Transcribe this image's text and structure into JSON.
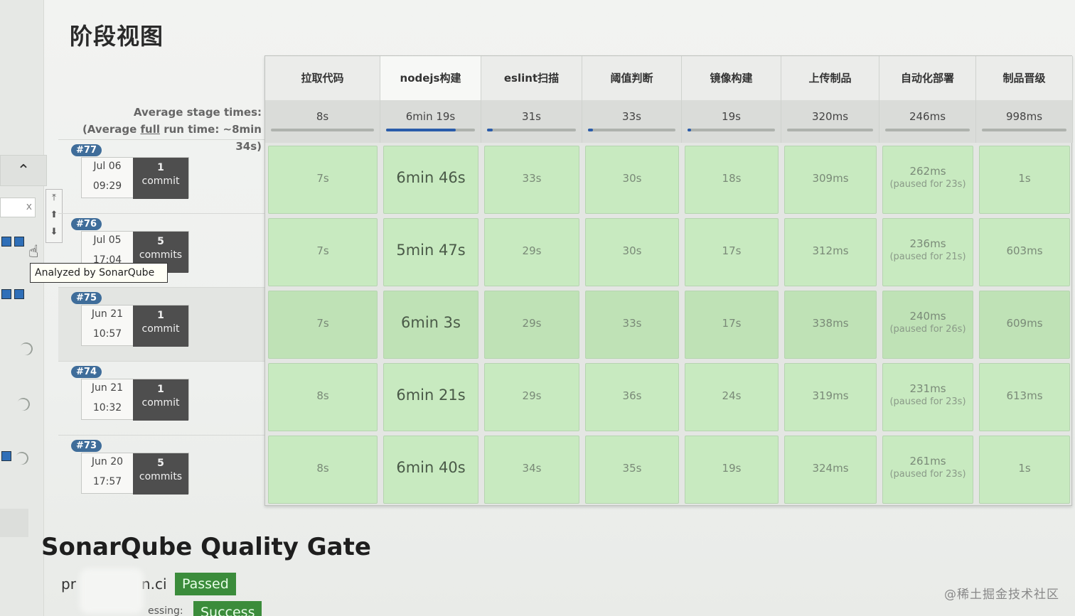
{
  "page_title": "阶段视图",
  "avg": {
    "line1": "Average stage times:",
    "line2_pre": "(Average ",
    "line2_full": "full",
    "line2_post": " run time: ~8min",
    "line3": "34s)"
  },
  "tooltip": "Analyzed by SonarQube",
  "stages": [
    {
      "name": "拉取代码",
      "avg": "8s",
      "fill": 0
    },
    {
      "name": "nodejs构建",
      "avg": "6min 19s",
      "fill": 0.78
    },
    {
      "name": "eslint扫描",
      "avg": "31s",
      "fill": 0.06
    },
    {
      "name": "阈值判断",
      "avg": "33s",
      "fill": 0.06
    },
    {
      "name": "镜像构建",
      "avg": "19s",
      "fill": 0.04
    },
    {
      "name": "上传制品",
      "avg": "320ms",
      "fill": 0
    },
    {
      "name": "自动化部署",
      "avg": "246ms",
      "fill": 0
    },
    {
      "name": "制品晋级",
      "avg": "998ms",
      "fill": 0
    }
  ],
  "builds": [
    {
      "id": "#77",
      "date": "Jul 06",
      "time": "09:29",
      "commit_count": "1",
      "commit_word": "commit",
      "cells": [
        {
          "v": "7s"
        },
        {
          "v": "6min 46s"
        },
        {
          "v": "33s"
        },
        {
          "v": "30s"
        },
        {
          "v": "18s"
        },
        {
          "v": "309ms"
        },
        {
          "v": "262ms",
          "paused": "(paused for 23s)"
        },
        {
          "v": "1s"
        }
      ]
    },
    {
      "id": "#76",
      "date": "Jul 05",
      "time": "17:04",
      "commit_count": "5",
      "commit_word": "commits",
      "cells": [
        {
          "v": "7s"
        },
        {
          "v": "5min 47s"
        },
        {
          "v": "29s"
        },
        {
          "v": "30s"
        },
        {
          "v": "17s"
        },
        {
          "v": "312ms"
        },
        {
          "v": "236ms",
          "paused": "(paused for 21s)"
        },
        {
          "v": "603ms"
        }
      ]
    },
    {
      "id": "#75",
      "date": "Jun 21",
      "time": "10:57",
      "commit_count": "1",
      "commit_word": "commit",
      "cells": [
        {
          "v": "7s"
        },
        {
          "v": "6min 3s"
        },
        {
          "v": "29s"
        },
        {
          "v": "33s"
        },
        {
          "v": "17s"
        },
        {
          "v": "338ms"
        },
        {
          "v": "240ms",
          "paused": "(paused for 26s)"
        },
        {
          "v": "609ms"
        }
      ]
    },
    {
      "id": "#74",
      "date": "Jun 21",
      "time": "10:32",
      "commit_count": "1",
      "commit_word": "commit",
      "cells": [
        {
          "v": "8s"
        },
        {
          "v": "6min 21s"
        },
        {
          "v": "29s"
        },
        {
          "v": "36s"
        },
        {
          "v": "24s"
        },
        {
          "v": "319ms"
        },
        {
          "v": "231ms",
          "paused": "(paused for 23s)"
        },
        {
          "v": "613ms"
        }
      ]
    },
    {
      "id": "#73",
      "date": "Jun 20",
      "time": "17:57",
      "commit_count": "5",
      "commit_word": "commits",
      "cells": [
        {
          "v": "8s"
        },
        {
          "v": "6min 40s"
        },
        {
          "v": "34s"
        },
        {
          "v": "35s"
        },
        {
          "v": "19s"
        },
        {
          "v": "324ms"
        },
        {
          "v": "261ms",
          "paused": "(paused for 23s)"
        },
        {
          "v": "1s"
        }
      ]
    }
  ],
  "sonar": {
    "title": "SonarQube Quality Gate",
    "project_prefix": "pr",
    "project_suffix": "n.ci",
    "status1": "Passed",
    "label2": "essing:",
    "status2": "Success"
  },
  "watermark": "@稀土掘金技术社区",
  "colors": {
    "cell_green": "#c8eac0",
    "cell_green_dark": "#bfe2b6",
    "badge": "#3f6d9a",
    "passed": "#3b8c3b"
  },
  "icons": {
    "collapse": "chevron-up-icon",
    "scroll_top": "arrow-top-icon",
    "scroll_up": "arrow-up-icon",
    "scroll_down": "arrow-down-icon",
    "cursor": "hand-cursor-icon"
  }
}
